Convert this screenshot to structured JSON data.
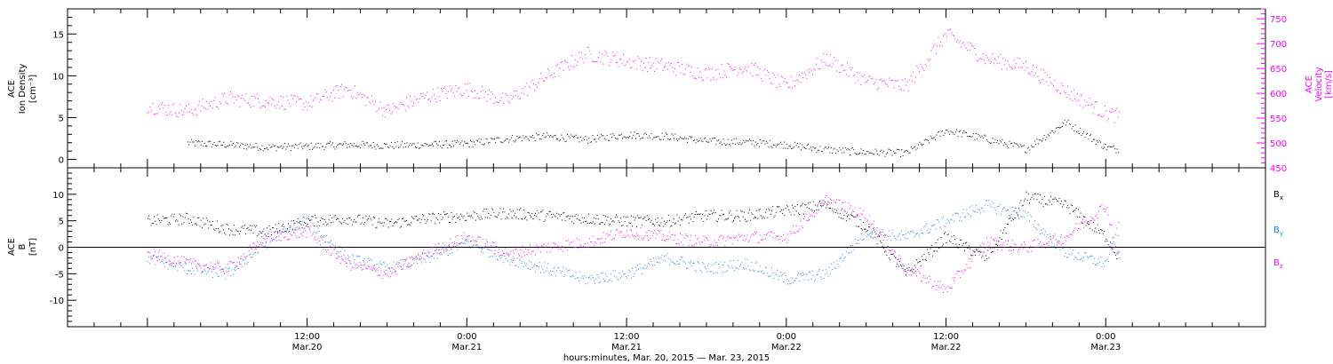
{
  "colors": {
    "density": "#000000",
    "velocity": "#ff00ff",
    "bx": "#000000",
    "by": "#1e88e5",
    "bz": "#ff00ff"
  },
  "chart_data": [
    {
      "type": "scatter",
      "name_panel": "plasma",
      "ylabel_lines": [
        "ACE",
        "Ion Density",
        "[cm⁻³]"
      ],
      "ylim": [
        -1,
        18
      ],
      "yticks": [
        0,
        5,
        10,
        15
      ],
      "ylabel2_lines": [
        "ACE",
        "Velocity",
        "[km/s]"
      ],
      "ylim2": [
        450,
        770
      ],
      "yticks2": [
        450,
        500,
        550,
        600,
        650,
        700,
        750
      ],
      "series": [
        {
          "axis": "left",
          "x": [
            3,
            6,
            9,
            12,
            15,
            18,
            21,
            24,
            27,
            30,
            33,
            36,
            39,
            42,
            45,
            48,
            51,
            54,
            57,
            60,
            63,
            66,
            69,
            72,
            73
          ],
          "values": [
            2,
            1.8,
            1.5,
            1.6,
            1.8,
            1.7,
            1.8,
            1.9,
            2.5,
            2.8,
            2.4,
            3.0,
            2.8,
            2.2,
            2.1,
            1.8,
            1.2,
            0.9,
            0.8,
            3.5,
            2.5,
            1.3,
            4.5,
            1.5,
            1.2
          ]
        },
        {
          "axis": "right",
          "x": [
            0,
            3,
            6,
            9,
            12,
            15,
            18,
            21,
            24,
            27,
            30,
            33,
            36,
            39,
            42,
            45,
            48,
            51,
            54,
            57,
            60,
            63,
            66,
            69,
            72,
            73
          ],
          "values": [
            575,
            565,
            590,
            585,
            580,
            610,
            565,
            595,
            610,
            585,
            635,
            680,
            665,
            655,
            640,
            655,
            615,
            670,
            625,
            615,
            720,
            670,
            655,
            605,
            560,
            555
          ]
        }
      ]
    },
    {
      "type": "scatter",
      "name_panel": "magnetic-field",
      "ylabel_lines": [
        "ACE",
        "B",
        "[nT]"
      ],
      "ylim": [
        -15,
        15
      ],
      "yticks": [
        -10,
        -5,
        0,
        5,
        10
      ],
      "zero_line": true,
      "series": [
        {
          "name": "Bx",
          "label_main": "B",
          "label_sub": "x",
          "x": [
            0,
            3,
            6,
            9,
            12,
            15,
            18,
            21,
            24,
            27,
            30,
            33,
            36,
            39,
            42,
            45,
            48,
            51,
            54,
            57,
            60,
            63,
            66,
            69,
            72,
            73
          ],
          "values": [
            5,
            5.5,
            3.5,
            3,
            5,
            5.5,
            4.5,
            5.5,
            6,
            6.5,
            6,
            5.5,
            5,
            5,
            6,
            6,
            7,
            8,
            4,
            -5,
            2,
            -2,
            9.5,
            8,
            2,
            -2
          ]
        },
        {
          "name": "By",
          "label_main": "B",
          "label_sub": "y",
          "x": [
            0,
            3,
            6,
            9,
            12,
            15,
            18,
            21,
            24,
            27,
            30,
            33,
            36,
            39,
            42,
            45,
            48,
            51,
            54,
            57,
            60,
            63,
            66,
            69,
            72,
            73
          ],
          "values": [
            -2,
            -4,
            -5,
            1,
            5,
            -2,
            -4,
            -2,
            1,
            -2,
            -4,
            -6,
            -5,
            -2,
            -4,
            -3,
            -6,
            -5,
            3,
            2,
            5,
            8,
            6,
            -1,
            -3,
            4
          ]
        },
        {
          "name": "Bz",
          "label_main": "B",
          "label_sub": "z",
          "x": [
            0,
            3,
            6,
            9,
            12,
            15,
            18,
            21,
            24,
            27,
            30,
            33,
            36,
            39,
            42,
            45,
            48,
            51,
            54,
            57,
            60,
            63,
            66,
            69,
            72,
            73
          ],
          "values": [
            -1,
            -3,
            -4,
            2,
            3,
            -3,
            -5,
            -1,
            2,
            -1,
            0,
            1,
            3,
            2,
            1,
            2,
            2,
            9,
            6,
            -4,
            -8,
            1,
            0,
            2,
            8,
            -3
          ]
        }
      ]
    }
  ],
  "x_axis": {
    "xlim_hours": [
      -6,
      84
    ],
    "ticks": [
      {
        "hour": 12,
        "time": "12:00",
        "date": "Mar.20"
      },
      {
        "hour": 24,
        "time": "0:00",
        "date": "Mar.21"
      },
      {
        "hour": 36,
        "time": "12:00",
        "date": "Mar.21"
      },
      {
        "hour": 48,
        "time": "0:00",
        "date": "Mar.22"
      },
      {
        "hour": 60,
        "time": "12:00",
        "date": "Mar.22"
      },
      {
        "hour": 72,
        "time": "0:00",
        "date": "Mar.23"
      }
    ],
    "title": "hours:minutes, Mar. 20, 2015 — Mar. 23, 2015"
  }
}
